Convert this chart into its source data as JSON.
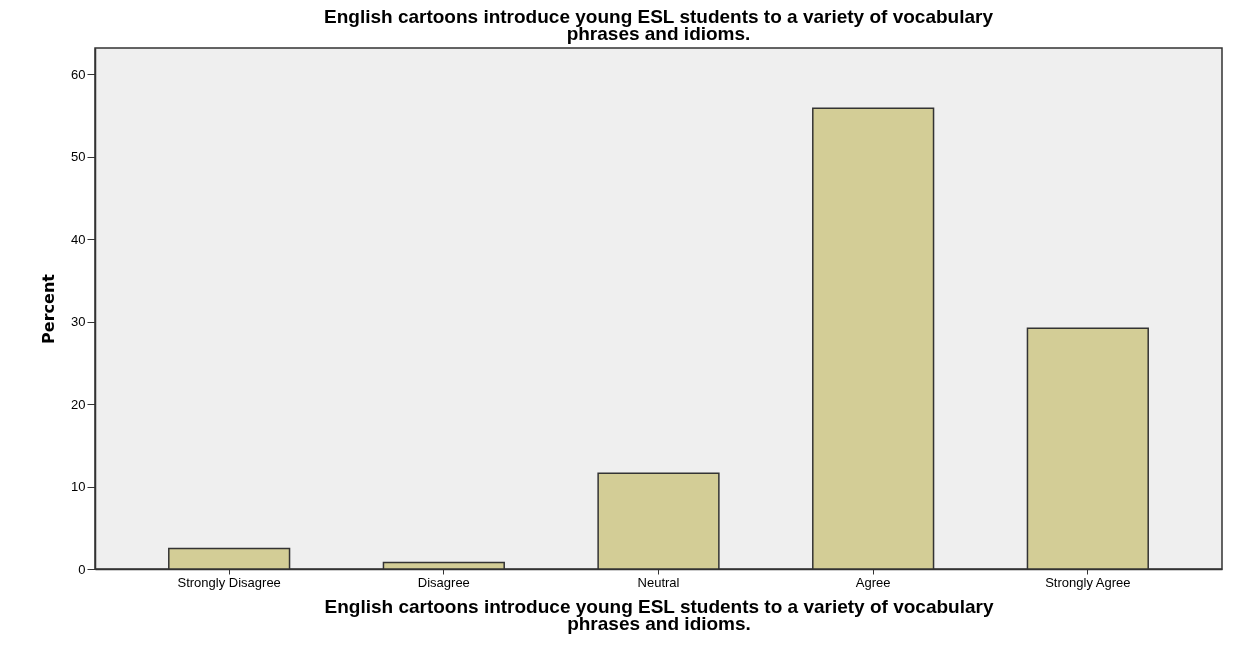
{
  "chart_data": {
    "type": "bar",
    "title": "English cartoons introduce young ESL students to a variety of vocabulary\nphrases and idioms.",
    "xlabel": "English cartoons introduce young ESL students to a variety of vocabulary\nphrases and idioms.",
    "ylabel": "Percent",
    "categories": [
      "Strongly Disagree",
      "Disagree",
      "Neutral",
      "Agree",
      "Strongly Agree"
    ],
    "values": [
      2.5,
      0.8,
      11.6,
      55.9,
      29.2
    ],
    "color": "#d3cd96",
    "ylim": [
      0,
      63.2
    ],
    "yticks": [
      0,
      10,
      20,
      30,
      40,
      50,
      60
    ],
    "grid": false
  }
}
